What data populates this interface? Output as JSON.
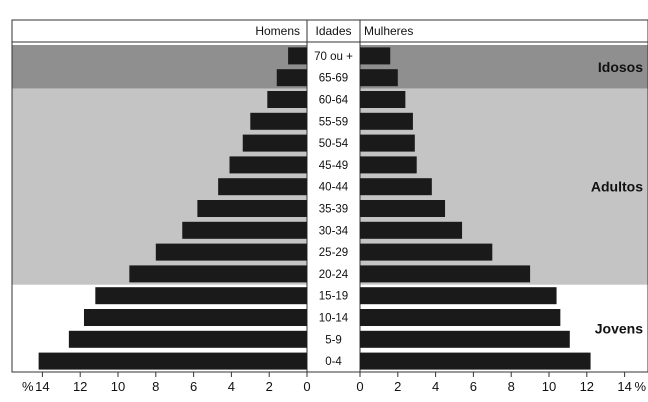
{
  "chart_data": {
    "type": "bar",
    "orientation": "horizontal-population-pyramid",
    "headers": {
      "left": "Homens",
      "center": "Idades",
      "right": "Mulheres"
    },
    "categories": [
      "70 ou +",
      "65-69",
      "60-64",
      "55-59",
      "50-54",
      "45-49",
      "40-44",
      "35-39",
      "30-34",
      "25-29",
      "20-24",
      "15-19",
      "10-14",
      "5-9",
      "0-4"
    ],
    "series": [
      {
        "name": "Homens",
        "values": [
          1.0,
          1.6,
          2.1,
          3.0,
          3.4,
          4.1,
          4.7,
          5.8,
          6.6,
          8.0,
          9.4,
          11.2,
          11.8,
          12.6,
          14.2
        ]
      },
      {
        "name": "Mulheres",
        "values": [
          1.6,
          2.0,
          2.4,
          2.8,
          2.9,
          3.0,
          3.8,
          4.5,
          5.4,
          7.0,
          9.0,
          10.4,
          10.6,
          11.1,
          12.2
        ]
      }
    ],
    "bands": [
      {
        "label": "Idosos",
        "from": "70 ou +",
        "to": "65-69",
        "color": "#8f8f8f"
      },
      {
        "label": "Adultos",
        "from": "60-64",
        "to": "20-24",
        "color": "#c4c4c4"
      },
      {
        "label": "Jovens",
        "from": "15-19",
        "to": "0-4",
        "color": "#ffffff"
      }
    ],
    "x_left_ticks": [
      "14",
      "12",
      "10",
      "8",
      "6",
      "4",
      "2",
      "0"
    ],
    "x_right_ticks": [
      "0",
      "2",
      "4",
      "6",
      "8",
      "10",
      "12",
      "14"
    ],
    "x_left_unit": "%",
    "x_right_unit": "%",
    "xlim": [
      0,
      14
    ],
    "bar_color": "#1a1a1a"
  }
}
